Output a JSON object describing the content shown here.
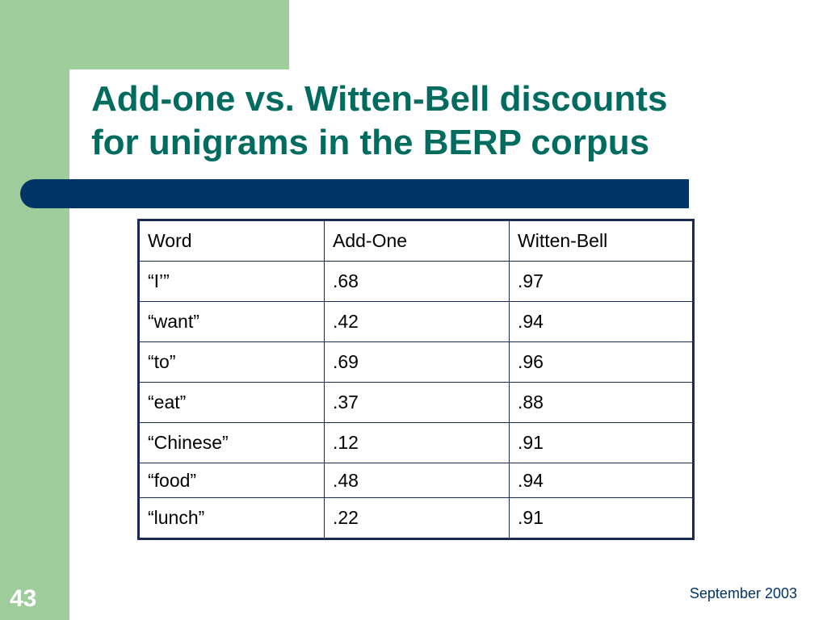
{
  "slide": {
    "title_lines": [
      "Add-one vs. Witten-Bell discounts",
      "for unigrams in the BERP corpus"
    ],
    "number": "43",
    "footer_date": "September 2003"
  },
  "colors": {
    "green_background": "#9ecc9a",
    "title_text": "#006b5f",
    "title_bar": "#003366",
    "table_border": "#1a2a55"
  },
  "table": {
    "headers": [
      "Word",
      "Add-One",
      "Witten-Bell"
    ],
    "rows": [
      [
        "“I’”",
        ".68",
        ".97"
      ],
      [
        "“want”",
        ".42",
        ".94"
      ],
      [
        "“to”",
        ".69",
        ".96"
      ],
      [
        "“eat”",
        ".37",
        ".88"
      ],
      [
        "“Chinese”",
        ".12",
        ".91"
      ],
      [
        "“food”",
        ".48",
        ".94"
      ],
      [
        "“lunch”",
        ".22",
        ".91"
      ]
    ]
  }
}
